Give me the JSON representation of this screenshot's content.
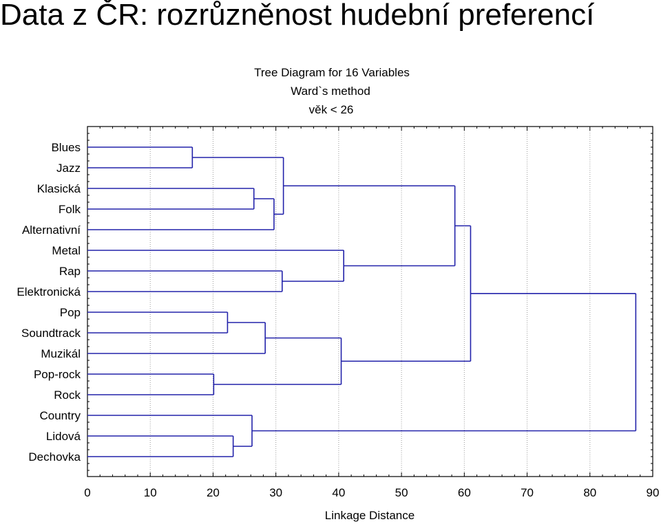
{
  "slide_title": "Data z ČR: rozrůzněnost hudební preferencí",
  "chart_data": {
    "type": "dendrogram",
    "title": "Tree Diagram for 16  Variables",
    "subtitle": [
      "Ward`s method",
      "věk < 26"
    ],
    "xlabel": "Linkage Distance",
    "xlim": [
      0,
      90
    ],
    "xticks": [
      0,
      10,
      20,
      30,
      40,
      50,
      60,
      70,
      80,
      90
    ],
    "grid": true,
    "line_color": "#2222aa",
    "leaves": [
      "Blues",
      "Jazz",
      "Klasická",
      "Folk",
      "Alternativní",
      "Metal",
      "Rap",
      "Elektronická",
      "Pop",
      "Soundtrack",
      "Muzikál",
      "Pop-rock",
      "Rock",
      "Country",
      "Lidová",
      "Dechovka"
    ],
    "merges": [
      {
        "id": "B",
        "children": [
          "Blues",
          "Jazz"
        ],
        "height": 16.7
      },
      {
        "id": "K",
        "children": [
          "Klasická",
          "Folk"
        ],
        "height": 26.5
      },
      {
        "id": "A",
        "children": [
          "K",
          "Alternativní"
        ],
        "height": 29.7
      },
      {
        "id": "C1",
        "children": [
          "B",
          "A"
        ],
        "height": 31.2
      },
      {
        "id": "R",
        "children": [
          "Rap",
          "Elektronická"
        ],
        "height": 31.0
      },
      {
        "id": "M",
        "children": [
          "Metal",
          "R"
        ],
        "height": 40.8
      },
      {
        "id": "C2",
        "children": [
          "C1",
          "M"
        ],
        "height": 58.5
      },
      {
        "id": "P",
        "children": [
          "Pop",
          "Soundtrack"
        ],
        "height": 22.3
      },
      {
        "id": "S",
        "children": [
          "P",
          "Muzikál"
        ],
        "height": 28.3
      },
      {
        "id": "PR",
        "children": [
          "Pop-rock",
          "Rock"
        ],
        "height": 20.1
      },
      {
        "id": "C3",
        "children": [
          "S",
          "PR"
        ],
        "height": 40.4
      },
      {
        "id": "C4",
        "children": [
          "C2",
          "C3"
        ],
        "height": 61.0
      },
      {
        "id": "L",
        "children": [
          "Lidová",
          "Dechovka"
        ],
        "height": 23.2
      },
      {
        "id": "CO",
        "children": [
          "Country",
          "L"
        ],
        "height": 26.2
      },
      {
        "id": "ROOT",
        "children": [
          "C4",
          "CO"
        ],
        "height": 87.3
      }
    ]
  }
}
